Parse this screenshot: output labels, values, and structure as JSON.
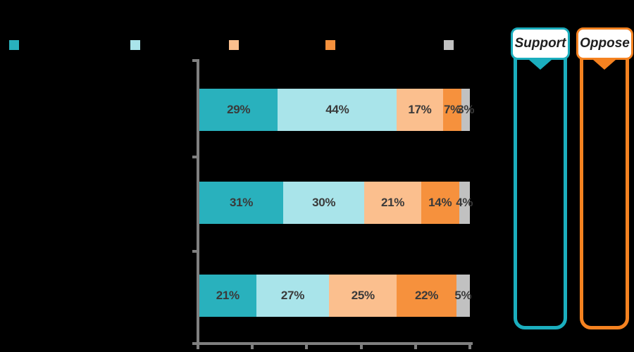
{
  "background_color": "#000000",
  "legend": {
    "swatches": [
      {
        "name": "series-1-swatch",
        "color": "#29B1BD"
      },
      {
        "name": "series-2-swatch",
        "color": "#A9E4EA"
      },
      {
        "name": "series-3-swatch",
        "color": "#FBBF8E"
      },
      {
        "name": "series-4-swatch",
        "color": "#F6913D"
      },
      {
        "name": "series-5-swatch",
        "color": "#C1C1C1"
      }
    ]
  },
  "chart_data": {
    "type": "bar",
    "orientation": "horizontal",
    "stacked": true,
    "categories": [
      "",
      "",
      ""
    ],
    "series": [
      {
        "name": "series-1-teal",
        "color": "#29B1BD",
        "values": [
          29,
          31,
          21
        ]
      },
      {
        "name": "series-2-light-blue",
        "color": "#A9E4EA",
        "values": [
          44,
          30,
          27
        ]
      },
      {
        "name": "series-3-light-orange",
        "color": "#FBBF8E",
        "values": [
          17,
          21,
          25
        ]
      },
      {
        "name": "series-4-orange",
        "color": "#F6913D",
        "values": [
          7,
          14,
          22
        ]
      },
      {
        "name": "series-5-gray",
        "color": "#C1C1C1",
        "values": [
          3,
          4,
          5
        ]
      }
    ],
    "value_labels": [
      [
        "29%",
        "44%",
        "17%",
        "7%",
        "3%"
      ],
      [
        "31%",
        "30%",
        "21%",
        "14%",
        "4%"
      ],
      [
        "21%",
        "27%",
        "25%",
        "22%",
        "5%"
      ]
    ],
    "xlim": [
      0,
      100
    ],
    "x_tick_count": 6,
    "grid": false,
    "legend_position": "top",
    "axis_color": "#7F7F7F",
    "value_label_color": "#3A3A3A"
  },
  "annotations": {
    "support": {
      "label": "Support",
      "color": "#1BAEBE"
    },
    "oppose": {
      "label": "Oppose",
      "color": "#F58220"
    }
  }
}
